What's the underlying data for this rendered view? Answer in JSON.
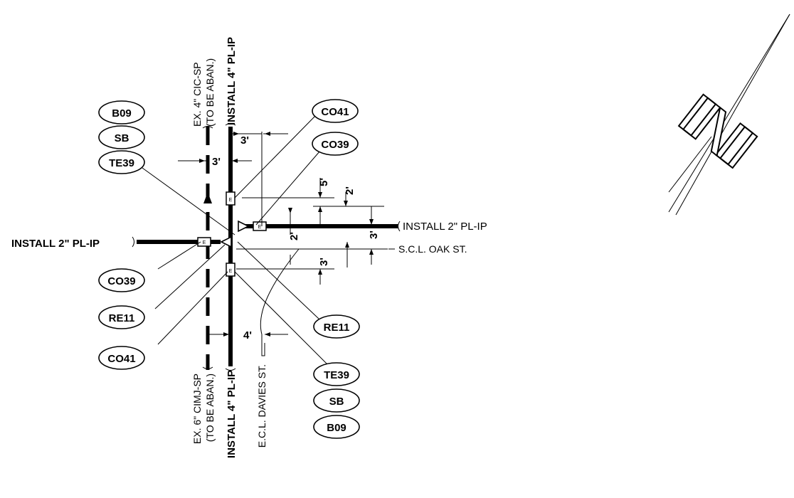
{
  "labels": {
    "ex_4_cic_line1": "EX. 4\" CIC-SP",
    "ex_4_cic_line2": "(TO BE ABAN.)",
    "install_4_top": "INSTALL 4\" PL-IP",
    "install_4_bottom": "INSTALL 4\" PL-IP",
    "ex_6_cimj_line1": "EX. 6\" CIMJ-SP",
    "ex_6_cimj_line2": "(TO BE ABAN.)",
    "ecl_davies": "E.C.L. DAVIES ST.",
    "install_2_left": "INSTALL 2\" PL-IP",
    "install_2_right": "INSTALL 2\" PL-IP",
    "scl_oak": "S.C.L. OAK ST."
  },
  "bubbles": {
    "left_b09": "B09",
    "left_sb": "SB",
    "left_te39": "TE39",
    "left_co39": "CO39",
    "left_re11": "RE11",
    "left_co41": "CO41",
    "right_co41": "CO41",
    "right_co39": "CO39",
    "right_re11": "RE11",
    "right_te39": "TE39",
    "right_sb": "SB",
    "right_b09": "B09"
  },
  "dimensions": {
    "top_3ft_a": "3'",
    "top_3ft_b": "3'",
    "vert_5ft": "5'",
    "vert_2ft_a": "2'",
    "vert_2ft_b": "2'",
    "vert_3ft_a": "3'",
    "vert_3ft_b": "3'",
    "bottom_4ft": "4'"
  },
  "fitting_letter": "E",
  "north_arrow_letter": "N"
}
